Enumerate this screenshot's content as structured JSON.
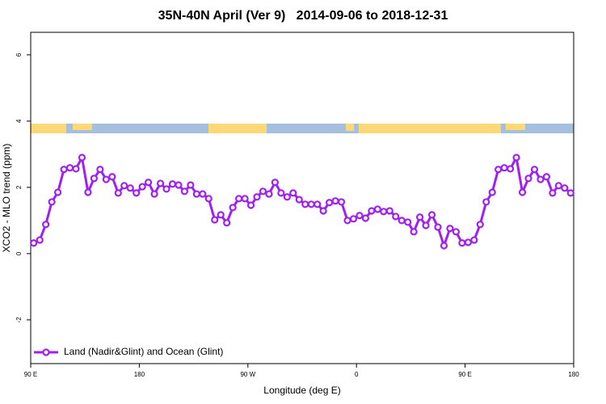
{
  "chart_data": {
    "type": "line",
    "title": "35N-40N April (Ver 9)   2014-09-06 to 2018-12-31",
    "xlabel": "Longitude (deg E)",
    "ylabel": "XCO2 - MLO trend (ppm)",
    "x": [
      92.5,
      97.5,
      102.5,
      107.5,
      112.5,
      117.5,
      122.5,
      127.5,
      132.5,
      137.5,
      142.5,
      147.5,
      152.5,
      157.5,
      162.5,
      167.5,
      172.5,
      177.5,
      182.5,
      187.5,
      192.5,
      197.5,
      202.5,
      207.5,
      212.5,
      217.5,
      222.5,
      227.5,
      232.5,
      237.5,
      242.5,
      247.5,
      252.5,
      257.5,
      262.5,
      267.5,
      272.5,
      277.5,
      282.5,
      287.5,
      292.5,
      297.5,
      302.5,
      307.5,
      312.5,
      317.5,
      322.5,
      327.5,
      332.5,
      337.5,
      342.5,
      347.5,
      352.5,
      357.5,
      362.5,
      367.5,
      372.5,
      377.5,
      382.5,
      387.5,
      392.5,
      397.5,
      402.5,
      407.5,
      412.5,
      417.5,
      422.5,
      427.5,
      432.5,
      437.5,
      442.5,
      447.5,
      452.5,
      457.5,
      462.5,
      467.5,
      472.5,
      477.5,
      482.5,
      487.5,
      492.5,
      497.5,
      502.5,
      507.5,
      512.5,
      517.5,
      522.5,
      527.5,
      532.5,
      537.5
    ],
    "series": [
      {
        "name": "Land (Nadir&Glint) and Ocean (Glint)",
        "color": "#a020f0",
        "values": [
          0.32,
          0.41,
          0.88,
          1.56,
          1.85,
          2.54,
          2.59,
          2.56,
          2.9,
          1.85,
          2.27,
          2.54,
          2.24,
          2.32,
          1.83,
          2.05,
          1.98,
          1.83,
          2.02,
          2.15,
          1.8,
          2.12,
          1.95,
          2.1,
          2.07,
          1.88,
          2.07,
          1.8,
          1.8,
          1.66,
          1.02,
          1.17,
          0.93,
          1.39,
          1.66,
          1.66,
          1.46,
          1.71,
          1.88,
          1.8,
          2.15,
          1.83,
          1.71,
          1.83,
          1.63,
          1.49,
          1.49,
          1.49,
          1.29,
          1.54,
          1.59,
          1.56,
          1.0,
          1.05,
          1.15,
          1.07,
          1.29,
          1.34,
          1.27,
          1.29,
          1.12,
          1.0,
          0.95,
          0.66,
          1.1,
          0.85,
          1.17,
          0.8,
          0.24,
          0.76,
          0.66,
          0.32,
          0.34,
          0.41,
          0.88,
          1.56,
          1.85,
          2.54,
          2.59,
          2.56,
          2.9,
          1.85,
          2.27,
          2.54,
          2.24,
          2.32,
          1.83,
          2.05,
          1.98,
          1.83
        ]
      }
    ],
    "xlim": [
      90,
      540
    ],
    "xticks": [
      {
        "value": 90,
        "label": "90 E"
      },
      180,
      {
        "value": 270,
        "label": "90 W"
      },
      {
        "value": 360,
        "label": "0"
      },
      {
        "value": 450,
        "label": "90 E"
      },
      {
        "value": 540,
        "label": "180"
      }
    ],
    "ylim": [
      -3.32,
      6.68
    ],
    "yticks": [
      -2,
      0,
      2,
      4,
      6
    ],
    "grid": false,
    "legend": "bottom-left"
  }
}
